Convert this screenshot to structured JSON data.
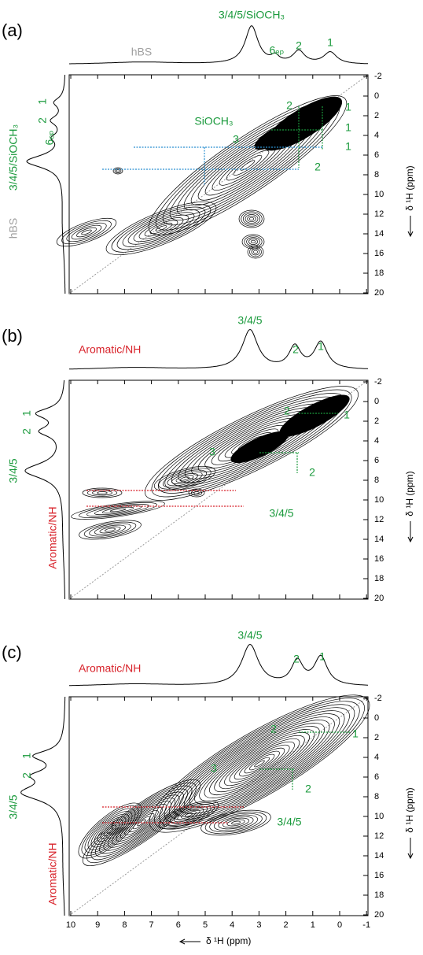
{
  "panels": [
    {
      "label": "(a)",
      "top_labels": [
        "3/4/5/SiOCH₃",
        "hBS",
        "6ₑₚ",
        "2",
        "1"
      ],
      "left_labels": [
        "3/4/5/SiOCH₃",
        "hBS",
        "6ₑₚ",
        "2",
        "1"
      ],
      "inner_labels": [
        "SiOCH₃",
        "3",
        "2",
        "1",
        "1",
        "1",
        "2"
      ]
    },
    {
      "label": "(b)",
      "top_labels": [
        "3/4/5",
        "Aromatic/NH",
        "2",
        "1"
      ],
      "left_labels": [
        "3/4/5",
        "Aromatic/NH",
        "2",
        "1"
      ],
      "inner_labels": [
        "2",
        "1",
        "3",
        "2",
        "3/4/5"
      ]
    },
    {
      "label": "(c)",
      "top_labels": [
        "3/4/5",
        "Aromatic/NH",
        "2",
        "1"
      ],
      "left_labels": [
        "3/4/5",
        "Aromatic/NH",
        "2",
        "1"
      ],
      "inner_labels": [
        "2",
        "1",
        "3",
        "2",
        "3/4/5"
      ]
    }
  ],
  "y_ticks": [
    "-2",
    "0",
    "2",
    "4",
    "6",
    "8",
    "10",
    "12",
    "14",
    "16",
    "18",
    "20"
  ],
  "y_axis_label": "δ ¹H (ppm)",
  "x_ticks": [
    "10",
    "9",
    "8",
    "7",
    "6",
    "5",
    "4",
    "3",
    "2",
    "1",
    "0",
    "-1"
  ],
  "x_axis_label": "δ ¹H (ppm)"
}
